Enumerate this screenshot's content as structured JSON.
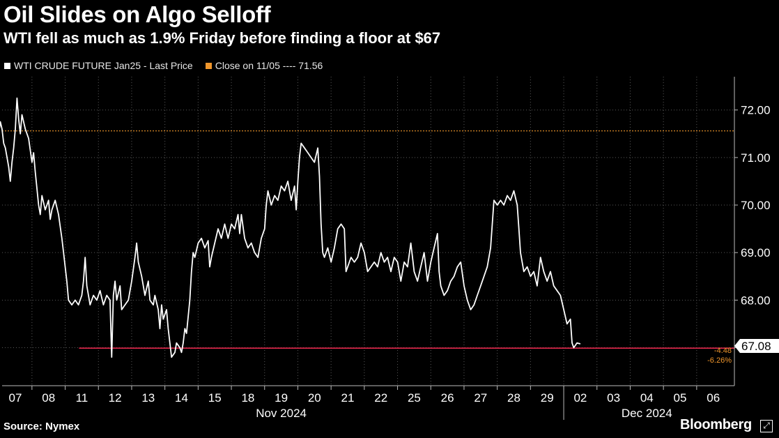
{
  "header": {
    "title": "Oil Slides on Algo Selloff",
    "subtitle": "WTI fell as much as 1.9% Friday before finding a floor at $67"
  },
  "legend": {
    "series_label": "WTI CRUDE FUTURE Jan25 - Last Price",
    "reference_label": "Close on 11/05 ---- 71.56"
  },
  "footer": {
    "source": "Source: Nymex",
    "brand": "Bloomberg"
  },
  "annotations": {
    "last_price": "67.08",
    "change_abs": "-4.48",
    "change_pct": "-6.26%"
  },
  "colors": {
    "background": "#000000",
    "series": "#ffffff",
    "reference_line": "#f0962c",
    "support_line": "#e0264a",
    "grid": "#5a5a5a",
    "change_text": "#f0962c"
  },
  "chart_data": {
    "type": "line",
    "title": "Oil Slides on Algo Selloff",
    "ylim": [
      66.2,
      72.7
    ],
    "yticks": [
      "67.00",
      "68.00",
      "69.00",
      "70.00",
      "71.00",
      "72.00"
    ],
    "x_days": [
      "07",
      "08",
      "11",
      "12",
      "13",
      "14",
      "15",
      "18",
      "19",
      "20",
      "21",
      "22",
      "25",
      "26",
      "27",
      "28",
      "29",
      "02",
      "03",
      "04",
      "05",
      "06"
    ],
    "month_labels": [
      "Nov 2024",
      "Dec 2024"
    ],
    "reference_line": {
      "name": "Close on 11/05",
      "value": 71.56
    },
    "support_line": {
      "value": 66.99,
      "from_day": "11"
    },
    "last_value": 67.08,
    "series": [
      {
        "name": "WTI CRUDE FUTURE Jan25 - Last Price",
        "points": [
          [
            -0.5,
            71.5
          ],
          [
            -0.45,
            71.75
          ],
          [
            -0.4,
            71.6
          ],
          [
            -0.35,
            71.3
          ],
          [
            -0.3,
            71.2
          ],
          [
            -0.2,
            70.8
          ],
          [
            -0.15,
            70.5
          ],
          [
            -0.1,
            70.9
          ],
          [
            -0.05,
            71.2
          ],
          [
            0.0,
            71.6
          ],
          [
            0.05,
            72.25
          ],
          [
            0.1,
            71.8
          ],
          [
            0.15,
            71.5
          ],
          [
            0.2,
            71.9
          ],
          [
            0.3,
            71.6
          ],
          [
            0.4,
            71.4
          ],
          [
            0.5,
            70.9
          ],
          [
            0.55,
            71.1
          ],
          [
            0.6,
            70.7
          ],
          [
            0.7,
            70.0
          ],
          [
            0.75,
            69.8
          ],
          [
            0.8,
            70.2
          ],
          [
            0.9,
            69.9
          ],
          [
            1.0,
            70.1
          ],
          [
            1.05,
            69.7
          ],
          [
            1.1,
            69.9
          ],
          [
            1.2,
            70.1
          ],
          [
            1.3,
            69.8
          ],
          [
            1.4,
            69.3
          ],
          [
            1.45,
            69.0
          ],
          [
            1.55,
            68.4
          ],
          [
            1.6,
            68.0
          ],
          [
            1.7,
            67.9
          ],
          [
            1.8,
            68.0
          ],
          [
            1.9,
            67.9
          ],
          [
            2.0,
            68.1
          ],
          [
            2.05,
            68.4
          ],
          [
            2.1,
            68.9
          ],
          [
            2.15,
            68.3
          ],
          [
            2.25,
            67.9
          ],
          [
            2.35,
            68.1
          ],
          [
            2.45,
            68.0
          ],
          [
            2.55,
            68.2
          ],
          [
            2.65,
            67.9
          ],
          [
            2.75,
            68.1
          ],
          [
            2.85,
            68.0
          ],
          [
            2.9,
            66.8
          ],
          [
            2.95,
            68.1
          ],
          [
            3.0,
            68.4
          ],
          [
            3.05,
            68.0
          ],
          [
            3.15,
            68.3
          ],
          [
            3.2,
            67.8
          ],
          [
            3.3,
            67.9
          ],
          [
            3.4,
            68.0
          ],
          [
            3.5,
            68.4
          ],
          [
            3.6,
            68.9
          ],
          [
            3.65,
            69.2
          ],
          [
            3.7,
            68.8
          ],
          [
            3.8,
            68.5
          ],
          [
            3.9,
            68.1
          ],
          [
            4.0,
            68.4
          ],
          [
            4.05,
            68.0
          ],
          [
            4.15,
            67.9
          ],
          [
            4.2,
            68.1
          ],
          [
            4.3,
            67.8
          ],
          [
            4.35,
            67.4
          ],
          [
            4.4,
            67.9
          ],
          [
            4.45,
            67.6
          ],
          [
            4.55,
            67.8
          ],
          [
            4.6,
            67.4
          ],
          [
            4.65,
            67.1
          ],
          [
            4.7,
            66.8
          ],
          [
            4.8,
            66.9
          ],
          [
            4.85,
            67.1
          ],
          [
            4.95,
            67.0
          ],
          [
            5.0,
            66.9
          ],
          [
            5.05,
            67.1
          ],
          [
            5.1,
            67.4
          ],
          [
            5.15,
            67.3
          ],
          [
            5.25,
            68.0
          ],
          [
            5.3,
            68.6
          ],
          [
            5.35,
            69.0
          ],
          [
            5.4,
            68.9
          ],
          [
            5.5,
            69.2
          ],
          [
            5.6,
            69.3
          ],
          [
            5.7,
            69.1
          ],
          [
            5.8,
            69.25
          ],
          [
            5.85,
            68.7
          ],
          [
            5.9,
            68.9
          ],
          [
            6.0,
            69.2
          ],
          [
            6.1,
            69.5
          ],
          [
            6.2,
            69.3
          ],
          [
            6.3,
            69.6
          ],
          [
            6.4,
            69.3
          ],
          [
            6.5,
            69.6
          ],
          [
            6.6,
            69.5
          ],
          [
            6.7,
            69.8
          ],
          [
            6.75,
            69.4
          ],
          [
            6.8,
            69.8
          ],
          [
            6.9,
            69.3
          ],
          [
            7.0,
            69.1
          ],
          [
            7.1,
            69.2
          ],
          [
            7.2,
            69.0
          ],
          [
            7.3,
            68.9
          ],
          [
            7.4,
            69.3
          ],
          [
            7.5,
            69.5
          ],
          [
            7.55,
            70.0
          ],
          [
            7.6,
            70.3
          ],
          [
            7.7,
            70.0
          ],
          [
            7.8,
            70.2
          ],
          [
            7.9,
            70.1
          ],
          [
            8.0,
            70.4
          ],
          [
            8.1,
            70.3
          ],
          [
            8.2,
            70.5
          ],
          [
            8.3,
            70.1
          ],
          [
            8.4,
            70.4
          ],
          [
            8.45,
            69.9
          ],
          [
            8.5,
            70.5
          ],
          [
            8.55,
            71.0
          ],
          [
            8.6,
            71.3
          ],
          [
            8.7,
            71.2
          ],
          [
            8.8,
            71.1
          ],
          [
            8.9,
            71.0
          ],
          [
            9.0,
            70.9
          ],
          [
            9.1,
            71.2
          ],
          [
            9.15,
            70.6
          ],
          [
            9.2,
            69.6
          ],
          [
            9.25,
            69.0
          ],
          [
            9.3,
            68.9
          ],
          [
            9.4,
            69.1
          ],
          [
            9.5,
            68.8
          ],
          [
            9.6,
            69.1
          ],
          [
            9.7,
            69.5
          ],
          [
            9.8,
            69.6
          ],
          [
            9.9,
            69.5
          ],
          [
            9.95,
            68.6
          ],
          [
            10.0,
            68.7
          ],
          [
            10.1,
            68.9
          ],
          [
            10.2,
            68.8
          ],
          [
            10.3,
            68.9
          ],
          [
            10.4,
            69.2
          ],
          [
            10.5,
            69.0
          ],
          [
            10.6,
            68.6
          ],
          [
            10.7,
            68.7
          ],
          [
            10.8,
            68.8
          ],
          [
            10.9,
            68.7
          ],
          [
            11.0,
            69.0
          ],
          [
            11.1,
            68.8
          ],
          [
            11.2,
            68.9
          ],
          [
            11.3,
            68.6
          ],
          [
            11.4,
            68.9
          ],
          [
            11.5,
            68.8
          ],
          [
            11.6,
            68.4
          ],
          [
            11.7,
            68.8
          ],
          [
            11.8,
            68.7
          ],
          [
            11.9,
            69.2
          ],
          [
            12.0,
            68.6
          ],
          [
            12.1,
            68.4
          ],
          [
            12.2,
            68.7
          ],
          [
            12.3,
            69.0
          ],
          [
            12.4,
            68.4
          ],
          [
            12.5,
            68.8
          ],
          [
            12.6,
            69.1
          ],
          [
            12.7,
            69.4
          ],
          [
            12.75,
            68.6
          ],
          [
            12.8,
            68.3
          ],
          [
            12.9,
            68.1
          ],
          [
            13.0,
            68.2
          ],
          [
            13.1,
            68.4
          ],
          [
            13.2,
            68.5
          ],
          [
            13.3,
            68.7
          ],
          [
            13.4,
            68.8
          ],
          [
            13.5,
            68.3
          ],
          [
            13.6,
            68.0
          ],
          [
            13.7,
            67.8
          ],
          [
            13.8,
            67.9
          ],
          [
            13.9,
            68.1
          ],
          [
            14.0,
            68.3
          ],
          [
            14.1,
            68.5
          ],
          [
            14.2,
            68.7
          ],
          [
            14.3,
            69.1
          ],
          [
            14.35,
            69.6
          ],
          [
            14.4,
            70.1
          ],
          [
            14.5,
            70.0
          ],
          [
            14.6,
            70.1
          ],
          [
            14.7,
            70.0
          ],
          [
            14.8,
            70.2
          ],
          [
            14.9,
            70.1
          ],
          [
            15.0,
            70.3
          ],
          [
            15.1,
            70.0
          ],
          [
            15.15,
            69.5
          ],
          [
            15.2,
            69.0
          ],
          [
            15.25,
            68.8
          ],
          [
            15.3,
            68.6
          ],
          [
            15.4,
            68.7
          ],
          [
            15.5,
            68.5
          ],
          [
            15.6,
            68.6
          ],
          [
            15.7,
            68.3
          ],
          [
            15.8,
            68.9
          ],
          [
            15.9,
            68.6
          ],
          [
            16.0,
            68.4
          ],
          [
            16.1,
            68.6
          ],
          [
            16.2,
            68.3
          ],
          [
            16.3,
            68.2
          ],
          [
            16.4,
            68.1
          ],
          [
            16.5,
            67.8
          ],
          [
            16.6,
            67.5
          ],
          [
            16.7,
            67.6
          ],
          [
            16.75,
            67.1
          ],
          [
            16.8,
            67.0
          ],
          [
            16.9,
            67.1
          ],
          [
            17.0,
            67.08
          ]
        ]
      }
    ]
  }
}
